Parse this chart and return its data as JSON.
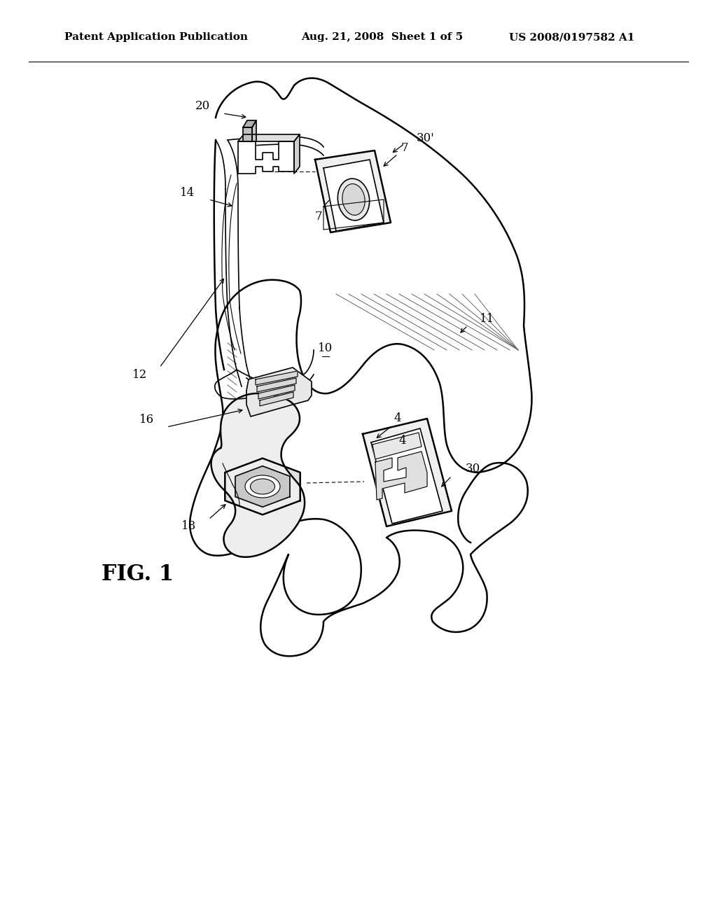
{
  "background_color": "#ffffff",
  "header_left": "Patent Application Publication",
  "header_center": "Aug. 21, 2008  Sheet 1 of 5",
  "header_right": "US 2008/0197582 A1",
  "header_fontsize": 11,
  "figure_label": "FIG. 1",
  "figure_label_fontsize": 22,
  "label_fontsize": 12,
  "lw_main": 1.8,
  "lw_med": 1.2,
  "lw_thin": 0.8,
  "hatch_color": "#555555"
}
